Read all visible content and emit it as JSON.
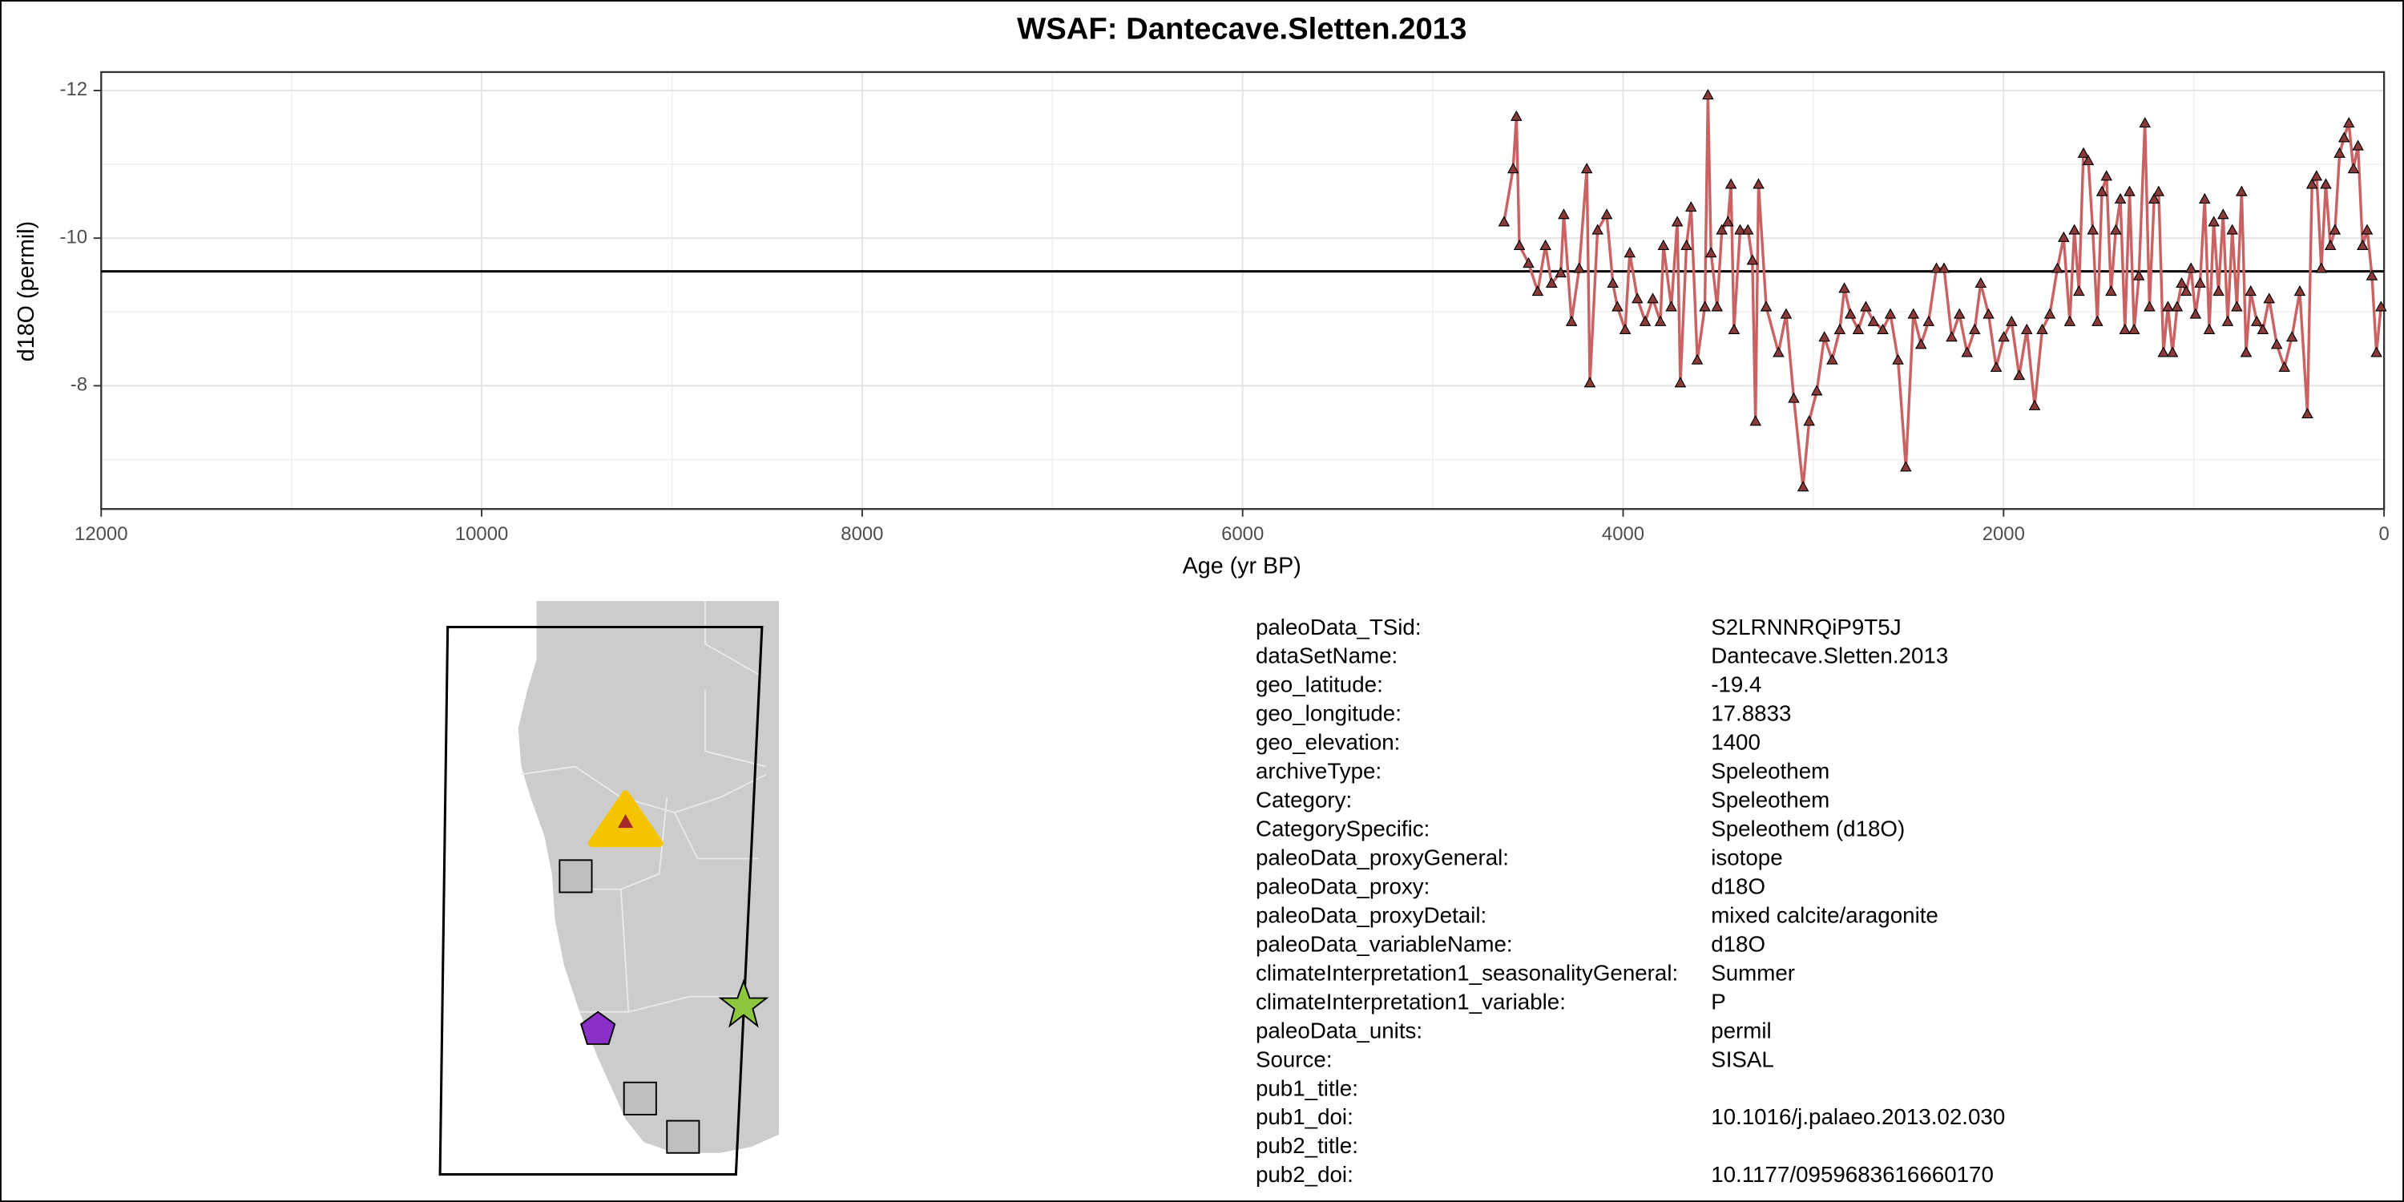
{
  "chart_data": {
    "type": "line",
    "title": "WSAF: Dantecave.Sletten.2013",
    "x_label": "Age (yr BP)",
    "y_label": "d18O (permil)",
    "xlim": [
      12000,
      0
    ],
    "xticks": [
      12000,
      10000,
      8000,
      6000,
      4000,
      2000,
      0
    ],
    "x_minor_grid": [
      11000,
      9000,
      7000,
      5000,
      3000,
      1000
    ],
    "ylim": [
      -6.33,
      -12.25
    ],
    "yticks": [
      -12,
      -10,
      -8
    ],
    "y_minor_grid": [
      -11,
      -9,
      -7
    ],
    "grid": true,
    "hline": -9.55,
    "color": "#c96262",
    "marker_color": "#8b3a3a",
    "x": [
      4626,
      4578,
      4561,
      4545,
      4497,
      4449,
      4408,
      4376,
      4328,
      4312,
      4271,
      4231,
      4191,
      4175,
      4134,
      4086,
      4054,
      4030,
      3989,
      3965,
      3925,
      3884,
      3844,
      3804,
      3788,
      3747,
      3715,
      3699,
      3667,
      3643,
      3610,
      3570,
      3554,
      3538,
      3506,
      3481,
      3449,
      3433,
      3417,
      3385,
      3344,
      3320,
      3304,
      3288,
      3248,
      3183,
      3143,
      3103,
      3054,
      3022,
      2982,
      2942,
      2901,
      2861,
      2837,
      2805,
      2764,
      2724,
      2684,
      2635,
      2595,
      2555,
      2514,
      2474,
      2434,
      2394,
      2353,
      2313,
      2273,
      2232,
      2192,
      2152,
      2120,
      2079,
      2039,
      1999,
      1958,
      1918,
      1878,
      1837,
      1797,
      1757,
      1717,
      1684,
      1652,
      1628,
      1604,
      1580,
      1555,
      1531,
      1507,
      1483,
      1459,
      1435,
      1410,
      1386,
      1362,
      1338,
      1314,
      1289,
      1257,
      1233,
      1209,
      1185,
      1160,
      1136,
      1112,
      1088,
      1064,
      1040,
      1015,
      991,
      967,
      943,
      919,
      895,
      870,
      846,
      822,
      798,
      774,
      749,
      725,
      701,
      669,
      637,
      604,
      564,
      524,
      484,
      443,
      403,
      379,
      355,
      330,
      306,
      282,
      258,
      234,
      210,
      185,
      161,
      137,
      113,
      89,
      64,
      40,
      16
    ],
    "values": [
      -10.22,
      -10.94,
      -11.65,
      -9.9,
      -9.66,
      -9.28,
      -9.9,
      -9.39,
      -9.53,
      -10.32,
      -8.87,
      -9.59,
      -10.94,
      -8.04,
      -10.11,
      -10.32,
      -9.39,
      -9.07,
      -8.76,
      -9.8,
      -9.18,
      -8.87,
      -9.18,
      -8.87,
      -9.9,
      -9.07,
      -10.22,
      -8.04,
      -9.9,
      -10.42,
      -8.35,
      -9.07,
      -11.94,
      -9.8,
      -9.07,
      -10.11,
      -10.22,
      -10.73,
      -8.76,
      -10.11,
      -10.11,
      -9.7,
      -7.52,
      -10.73,
      -9.07,
      -8.45,
      -8.97,
      -7.83,
      -6.63,
      -7.52,
      -7.93,
      -8.66,
      -8.35,
      -8.76,
      -9.32,
      -8.97,
      -8.76,
      -9.07,
      -8.87,
      -8.76,
      -8.97,
      -8.35,
      -6.9,
      -8.97,
      -8.56,
      -8.87,
      -9.59,
      -9.59,
      -8.66,
      -8.97,
      -8.45,
      -8.76,
      -9.39,
      -8.97,
      -8.25,
      -8.66,
      -8.87,
      -8.14,
      -8.76,
      -7.73,
      -8.76,
      -8.97,
      -9.59,
      -10.01,
      -8.87,
      -10.11,
      -9.28,
      -11.15,
      -11.05,
      -10.11,
      -8.87,
      -10.63,
      -10.84,
      -9.28,
      -10.11,
      -10.53,
      -8.76,
      -10.63,
      -8.76,
      -9.49,
      -11.56,
      -9.07,
      -10.53,
      -10.63,
      -8.45,
      -9.07,
      -8.45,
      -9.07,
      -9.39,
      -9.28,
      -9.59,
      -8.97,
      -9.39,
      -10.53,
      -8.76,
      -10.22,
      -9.28,
      -10.32,
      -8.87,
      -10.11,
      -9.07,
      -10.63,
      -8.45,
      -9.28,
      -8.87,
      -8.76,
      -9.18,
      -8.56,
      -8.25,
      -8.66,
      -9.28,
      -7.62,
      -10.73,
      -10.84,
      -9.59,
      -10.73,
      -9.9,
      -10.11,
      -11.15,
      -11.36,
      -11.56,
      -10.94,
      -11.25,
      -9.9,
      -10.11,
      -9.49,
      -8.45,
      -9.07
    ]
  },
  "metadata": [
    {
      "key": "paleoData_TSid:",
      "value": "S2LRNNRQiP9T5J"
    },
    {
      "key": "dataSetName:",
      "value": "Dantecave.Sletten.2013"
    },
    {
      "key": "geo_latitude:",
      "value": "-19.4"
    },
    {
      "key": "geo_longitude:",
      "value": "17.8833"
    },
    {
      "key": "geo_elevation:",
      "value": "1400"
    },
    {
      "key": "archiveType:",
      "value": "Speleothem"
    },
    {
      "key": "Category:",
      "value": "Speleothem"
    },
    {
      "key": "CategorySpecific:",
      "value": "Speleothem (d18O)"
    },
    {
      "key": "paleoData_proxyGeneral:",
      "value": "isotope"
    },
    {
      "key": "paleoData_proxy:",
      "value": "d18O"
    },
    {
      "key": "paleoData_proxyDetail:",
      "value": "mixed calcite/aragonite"
    },
    {
      "key": "paleoData_variableName:",
      "value": "d18O"
    },
    {
      "key": "climateInterpretation1_seasonalityGeneral:",
      "value": "Summer"
    },
    {
      "key": "climateInterpretation1_variable:",
      "value": "P"
    },
    {
      "key": "paleoData_units:",
      "value": "permil"
    },
    {
      "key": "Source:",
      "value": "SISAL"
    },
    {
      "key": "pub1_title:"
    },
    {
      "key": "pub1_doi:",
      "value": "10.1016/j.palaeo.2013.02.030"
    },
    {
      "key": "pub2_title:"
    },
    {
      "key": "pub2_doi:",
      "value": "10.1177/0959683616660170"
    }
  ]
}
